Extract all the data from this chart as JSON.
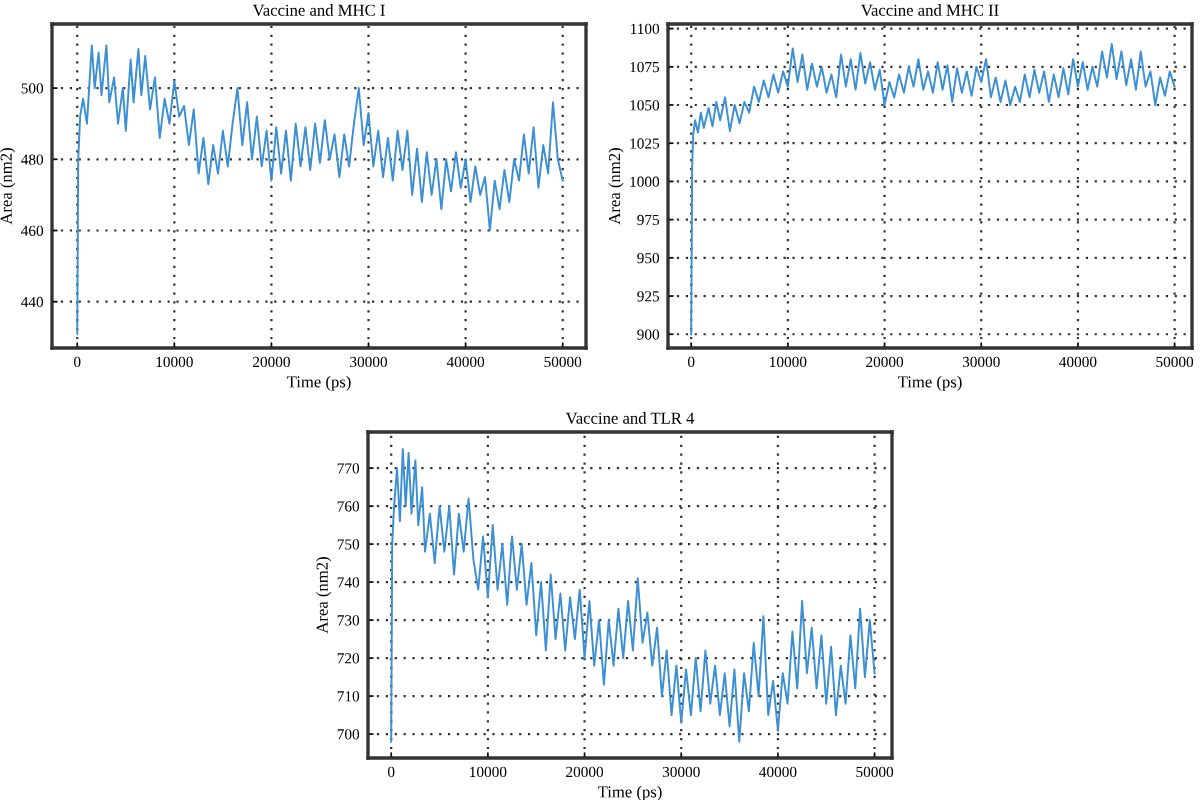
{
  "chart_data": [
    {
      "type": "line",
      "title": "Vaccine and MHC I",
      "xlabel": "Time (ps)",
      "ylabel": "Area (nm2)",
      "xlim": [
        -2600,
        52400
      ],
      "ylim": [
        427,
        518
      ],
      "xticks": [
        0,
        10000,
        20000,
        30000,
        40000,
        50000
      ],
      "yticks": [
        440,
        460,
        480,
        500
      ],
      "grid": true,
      "legend": false,
      "series": [
        {
          "color": "#3b8fd4",
          "x": [
            0,
            100,
            300,
            600,
            1000,
            1500,
            1800,
            2200,
            2500,
            3000,
            3300,
            3800,
            4200,
            4700,
            5000,
            5500,
            5800,
            6300,
            6600,
            7000,
            7500,
            8000,
            8500,
            9000,
            9500,
            10000,
            10500,
            11000,
            11500,
            12000,
            12500,
            13000,
            13500,
            14000,
            14500,
            15000,
            15500,
            16000,
            16500,
            17000,
            17500,
            18000,
            18500,
            19000,
            19500,
            20000,
            20500,
            21000,
            21500,
            22000,
            22500,
            23000,
            23500,
            24000,
            24500,
            25000,
            25500,
            26000,
            26500,
            27000,
            27500,
            28000,
            28500,
            29000,
            29500,
            30000,
            30500,
            31000,
            31500,
            32000,
            32500,
            33000,
            33500,
            34000,
            34500,
            35000,
            35500,
            36000,
            36500,
            37000,
            37500,
            38000,
            38500,
            39000,
            39500,
            40000,
            40500,
            41000,
            41500,
            42000,
            42500,
            43000,
            43500,
            44000,
            44500,
            45000,
            45500,
            46000,
            46500,
            47000,
            47500,
            48000,
            48500,
            49000,
            49500,
            50000
          ],
          "values": [
            431,
            480,
            492,
            497,
            490,
            512,
            500,
            510,
            498,
            512,
            496,
            503,
            490,
            500,
            488,
            508,
            496,
            511,
            498,
            509,
            494,
            503,
            486,
            497,
            490,
            502,
            492,
            495,
            484,
            494,
            476,
            486,
            473,
            484,
            476,
            488,
            478,
            490,
            500,
            484,
            496,
            480,
            492,
            478,
            488,
            474,
            489,
            476,
            488,
            474,
            490,
            478,
            489,
            477,
            490,
            479,
            491,
            480,
            487,
            475,
            487,
            478,
            490,
            500,
            484,
            493,
            478,
            488,
            475,
            486,
            474,
            488,
            477,
            488,
            470,
            483,
            468,
            482,
            470,
            480,
            466,
            480,
            471,
            482,
            472,
            480,
            468,
            478,
            470,
            475,
            460,
            474,
            466,
            477,
            468,
            480,
            474,
            487,
            476,
            489,
            472,
            484,
            476,
            496,
            480,
            474
          ]
        }
      ]
    },
    {
      "type": "line",
      "title": "Vaccine and MHC II",
      "xlabel": "Time (ps)",
      "ylabel": "Area (nm2)",
      "xlim": [
        -2400,
        51800
      ],
      "ylim": [
        891,
        1103
      ],
      "xticks": [
        0,
        10000,
        20000,
        30000,
        40000,
        50000
      ],
      "yticks": [
        900,
        925,
        950,
        975,
        1000,
        1025,
        1050,
        1075,
        1100
      ],
      "grid": true,
      "legend": false,
      "series": [
        {
          "color": "#3b8fd4",
          "x": [
            0,
            100,
            200,
            400,
            700,
            1000,
            1300,
            1800,
            2200,
            2600,
            3000,
            3500,
            4000,
            4500,
            5000,
            5500,
            6000,
            6500,
            7000,
            7500,
            8000,
            8500,
            9000,
            9500,
            10000,
            10500,
            11000,
            11500,
            12000,
            12500,
            13000,
            13500,
            14000,
            14500,
            15000,
            15500,
            16000,
            16500,
            17000,
            17500,
            18000,
            18500,
            19000,
            19500,
            20000,
            20500,
            21000,
            21500,
            22000,
            22500,
            23000,
            23500,
            24000,
            24500,
            25000,
            25500,
            26000,
            26500,
            27000,
            27500,
            28000,
            28500,
            29000,
            29500,
            30000,
            30500,
            31000,
            31500,
            32000,
            32500,
            33000,
            33500,
            34000,
            34500,
            35000,
            35500,
            36000,
            36500,
            37000,
            37500,
            38000,
            38500,
            39000,
            39500,
            40000,
            40500,
            41000,
            41500,
            42000,
            42500,
            43000,
            43500,
            44000,
            44500,
            45000,
            45500,
            46000,
            46500,
            47000,
            47500,
            48000,
            48500,
            49000,
            49500,
            50000
          ],
          "values": [
            900,
            1010,
            1030,
            1040,
            1032,
            1045,
            1035,
            1048,
            1036,
            1052,
            1040,
            1055,
            1033,
            1050,
            1038,
            1052,
            1045,
            1062,
            1052,
            1066,
            1055,
            1070,
            1058,
            1072,
            1062,
            1087,
            1065,
            1083,
            1060,
            1077,
            1062,
            1075,
            1058,
            1070,
            1055,
            1083,
            1062,
            1080,
            1060,
            1084,
            1064,
            1078,
            1060,
            1073,
            1050,
            1065,
            1055,
            1070,
            1058,
            1075,
            1062,
            1080,
            1060,
            1072,
            1058,
            1078,
            1060,
            1076,
            1052,
            1074,
            1058,
            1072,
            1056,
            1075,
            1065,
            1080,
            1055,
            1068,
            1052,
            1066,
            1050,
            1062,
            1052,
            1070,
            1055,
            1073,
            1058,
            1072,
            1052,
            1070,
            1055,
            1074,
            1057,
            1080,
            1062,
            1078,
            1060,
            1075,
            1062,
            1085,
            1068,
            1090,
            1067,
            1085,
            1063,
            1080,
            1060,
            1085,
            1062,
            1072,
            1050,
            1068,
            1056,
            1072,
            1062
          ]
        }
      ]
    },
    {
      "type": "line",
      "title": "Vaccine and TLR 4",
      "xlabel": "Time (ps)",
      "ylabel": "Area (nm2)",
      "xlim": [
        -2400,
        51800
      ],
      "ylim": [
        693.7,
        779.5
      ],
      "xticks": [
        0,
        10000,
        20000,
        30000,
        40000,
        50000
      ],
      "yticks": [
        700,
        710,
        720,
        730,
        740,
        750,
        760,
        770
      ],
      "grid": true,
      "legend": false,
      "series": [
        {
          "color": "#3b8fd4",
          "x": [
            0,
            100,
            300,
            600,
            900,
            1200,
            1500,
            1800,
            2100,
            2500,
            2800,
            3200,
            3500,
            4000,
            4500,
            5000,
            5500,
            6000,
            6500,
            7000,
            7500,
            8000,
            8500,
            9000,
            9500,
            10000,
            10500,
            11000,
            11500,
            12000,
            12500,
            13000,
            13500,
            14000,
            14500,
            15000,
            15500,
            16000,
            16500,
            17000,
            17500,
            18000,
            18500,
            19000,
            19500,
            20000,
            20500,
            21000,
            21500,
            22000,
            22500,
            23000,
            23500,
            24000,
            24500,
            25000,
            25500,
            26000,
            26500,
            27000,
            27500,
            28000,
            28500,
            29000,
            29500,
            30000,
            30500,
            31000,
            31500,
            32000,
            32500,
            33000,
            33500,
            34000,
            34500,
            35000,
            35500,
            36000,
            36500,
            37000,
            37500,
            38000,
            38500,
            39000,
            39500,
            40000,
            40500,
            41000,
            41500,
            42000,
            42500,
            43000,
            43500,
            44000,
            44500,
            45000,
            45500,
            46000,
            46500,
            47000,
            47500,
            48000,
            48500,
            49000,
            49500,
            50000
          ],
          "values": [
            698,
            750,
            760,
            770,
            756,
            775,
            760,
            774,
            758,
            772,
            755,
            765,
            748,
            758,
            745,
            760,
            748,
            760,
            742,
            758,
            748,
            762,
            746,
            738,
            752,
            736,
            755,
            738,
            750,
            734,
            752,
            738,
            750,
            734,
            745,
            726,
            740,
            722,
            742,
            725,
            737,
            722,
            736,
            725,
            738,
            720,
            735,
            718,
            730,
            713,
            730,
            718,
            733,
            720,
            735,
            722,
            741,
            724,
            732,
            718,
            728,
            710,
            722,
            705,
            718,
            703,
            717,
            705,
            720,
            706,
            722,
            708,
            718,
            705,
            716,
            702,
            717,
            698,
            716,
            706,
            724,
            710,
            731,
            705,
            714,
            701,
            716,
            708,
            727,
            712,
            735,
            716,
            728,
            712,
            726,
            708,
            723,
            705,
            718,
            708,
            726,
            712,
            733,
            715,
            730,
            716
          ]
        }
      ]
    }
  ]
}
